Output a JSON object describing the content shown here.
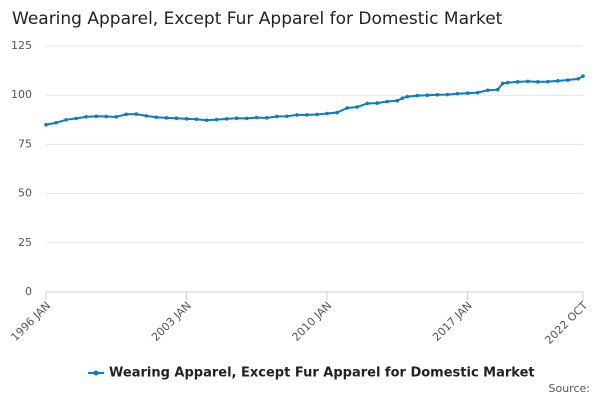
{
  "chart_data": {
    "type": "line",
    "title": "Wearing Apparel, Except Fur Apparel for Domestic Market",
    "source_label": "Source:",
    "x": [
      1996.0,
      1996.5,
      1997.0,
      1997.5,
      1998.0,
      1998.5,
      1999.0,
      1999.5,
      2000.0,
      2000.5,
      2001.0,
      2001.5,
      2002.0,
      2002.5,
      2003.0,
      2003.5,
      2004.0,
      2004.5,
      2005.0,
      2005.5,
      2006.0,
      2006.5,
      2007.0,
      2007.5,
      2008.0,
      2008.5,
      2009.0,
      2009.5,
      2010.0,
      2010.5,
      2011.0,
      2011.5,
      2012.0,
      2012.5,
      2013.0,
      2013.5,
      2013.75,
      2014.0,
      2014.5,
      2015.0,
      2015.5,
      2016.0,
      2016.5,
      2017.0,
      2017.5,
      2018.0,
      2018.5,
      2018.75,
      2019.0,
      2019.5,
      2020.0,
      2020.5,
      2021.0,
      2021.5,
      2022.0,
      2022.5,
      2022.75
    ],
    "series": [
      {
        "name": "Wearing Apparel, Except Fur Apparel for Domestic Market",
        "color": "#0b7dc0",
        "values": [
          85,
          86,
          87.5,
          88.2,
          89,
          89.3,
          89.2,
          89,
          90.3,
          90.4,
          89.5,
          88.8,
          88.5,
          88.3,
          88,
          87.8,
          87.3,
          87.6,
          88,
          88.3,
          88.2,
          88.6,
          88.5,
          89.2,
          89.3,
          90,
          90,
          90.2,
          90.7,
          91.2,
          93.5,
          94,
          95.8,
          96,
          96.8,
          97.2,
          98.5,
          99.3,
          99.8,
          100,
          100.2,
          100.3,
          100.8,
          101,
          101.3,
          102.5,
          102.8,
          106,
          106.4,
          106.8,
          107,
          106.8,
          106.9,
          107.3,
          107.7,
          108.3,
          109.7
        ]
      }
    ],
    "xlim": [
      1996.0,
      2022.75
    ],
    "xticks": [
      {
        "value": 1996.0,
        "label": "1996 JAN"
      },
      {
        "value": 2003.0,
        "label": "2003 JAN"
      },
      {
        "value": 2010.0,
        "label": "2010 JAN"
      },
      {
        "value": 2017.0,
        "label": "2017 JAN"
      },
      {
        "value": 2022.75,
        "label": "2022 OCT"
      }
    ],
    "ylim": [
      0,
      125
    ],
    "yticks": [
      0,
      25,
      50,
      75,
      100,
      125
    ],
    "grid": true
  }
}
